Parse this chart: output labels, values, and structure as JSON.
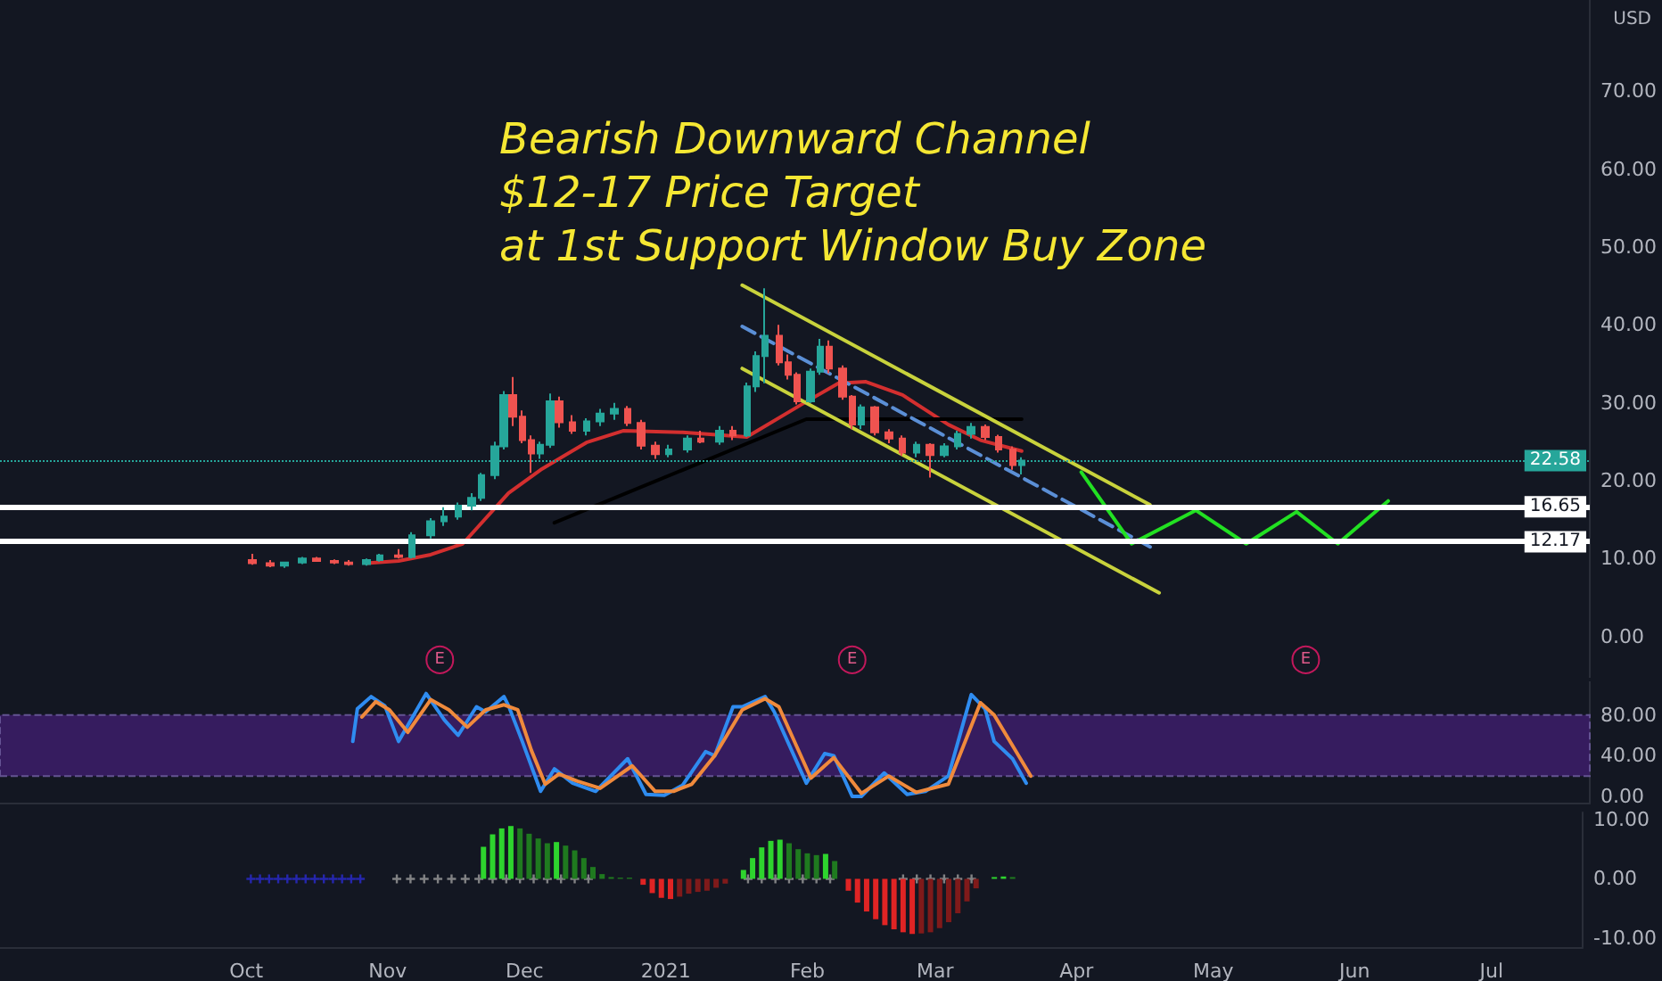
{
  "chart_data": [
    {
      "type": "candlestick",
      "title": "Bearish Downward Channel\n$12-17 Price Target\nat 1st Support Window Buy Zone",
      "xlim": [
        "2020-08-08",
        "2021-07-21"
      ],
      "ylim": [
        -5.3,
        81.7
      ],
      "yticks": [
        {
          "value": 0,
          "label": "0.00"
        },
        {
          "value": 10,
          "label": "10.00"
        },
        {
          "value": 20,
          "label": "20.00"
        },
        {
          "value": 30,
          "label": "30.00"
        },
        {
          "value": 40,
          "label": "40.00"
        },
        {
          "value": 50,
          "label": "50.00"
        },
        {
          "value": 60,
          "label": "60.00"
        },
        {
          "value": 70,
          "label": "70.00"
        }
      ],
      "tick_labels": "y",
      "grid": false,
      "annotations": [
        "USD",
        {
          "text": "E",
          "x": "2020-11-12",
          "y": -3
        },
        {
          "text": "E",
          "x": "2021-02-10",
          "y": -3
        },
        {
          "text": "E",
          "x": "2021-05-20",
          "y": -3
        }
      ],
      "ref_lines": [
        {
          "axis": "y",
          "value": 22.58,
          "label": "22.58",
          "color": "#26a69a",
          "line_style": "dotted"
        },
        {
          "axis": "y",
          "value": 16.65,
          "label": "16.65",
          "color": "#ffffff",
          "line_style": "solid"
        },
        {
          "axis": "y",
          "value": 12.17,
          "label": "12.17",
          "color": "#ffffff",
          "line_style": "solid"
        }
      ],
      "series": [
        {
          "x": [
            "2020-10-02",
            "2020-10-06",
            "2020-10-09",
            "2020-10-13",
            "2020-10-16",
            "2020-10-20",
            "2020-10-23",
            "2020-10-27",
            "2020-10-30",
            "2020-11-03",
            "2020-11-06",
            "2020-11-10",
            "2020-11-13",
            "2020-11-16",
            "2020-11-19",
            "2020-11-21",
            "2020-11-24",
            "2020-11-26",
            "2020-11-28",
            "2020-11-30",
            "2020-12-02",
            "2020-12-04",
            "2020-12-06",
            "2020-12-08",
            "2020-12-11",
            "2020-12-14",
            "2020-12-17",
            "2020-12-20",
            "2020-12-23",
            "2020-12-26",
            "2020-12-29",
            "2021-01-01",
            "2021-01-05",
            "2021-01-08",
            "2021-01-12",
            "2021-01-15",
            "2021-01-18",
            "2021-01-20",
            "2021-01-22",
            "2021-01-25",
            "2021-01-27",
            "2021-01-29",
            "2021-02-01",
            "2021-02-03",
            "2021-02-05",
            "2021-02-08",
            "2021-02-10",
            "2021-02-12",
            "2021-02-15",
            "2021-02-18",
            "2021-02-21",
            "2021-02-24",
            "2021-02-27",
            "2021-03-02",
            "2021-03-05",
            "2021-03-08",
            "2021-03-11",
            "2021-03-14",
            "2021-03-17",
            "2021-03-19"
          ],
          "ohlc": [
            [
              9.8,
              10.6,
              9.2,
              9.4
            ],
            [
              9.4,
              9.8,
              8.9,
              9.1
            ],
            [
              9.1,
              9.6,
              8.8,
              9.5
            ],
            [
              9.5,
              10.2,
              9.3,
              10.0
            ],
            [
              10.0,
              10.2,
              9.6,
              9.7
            ],
            [
              9.7,
              9.9,
              9.3,
              9.5
            ],
            [
              9.5,
              9.8,
              9.1,
              9.3
            ],
            [
              9.3,
              10.0,
              9.1,
              9.8
            ],
            [
              9.8,
              10.6,
              9.6,
              10.4
            ],
            [
              10.4,
              11.2,
              10.0,
              10.2
            ],
            [
              10.2,
              13.4,
              10.0,
              13.0
            ],
            [
              13.0,
              15.2,
              12.6,
              14.8
            ],
            [
              14.8,
              16.6,
              14.2,
              15.4
            ],
            [
              15.4,
              17.2,
              15.0,
              16.8
            ],
            [
              16.8,
              18.4,
              16.2,
              17.8
            ],
            [
              17.8,
              21.0,
              17.4,
              20.7
            ],
            [
              20.7,
              25.0,
              20.2,
              24.4
            ],
            [
              24.4,
              31.5,
              24.0,
              31.0
            ],
            [
              31.0,
              33.3,
              27.0,
              28.2
            ],
            [
              28.2,
              29.0,
              24.8,
              25.2
            ],
            [
              25.2,
              25.8,
              21.0,
              23.5
            ],
            [
              23.5,
              25.0,
              22.8,
              24.6
            ],
            [
              24.6,
              31.2,
              24.2,
              30.2
            ],
            [
              30.2,
              30.8,
              26.8,
              27.5
            ],
            [
              27.5,
              28.4,
              26.0,
              26.4
            ],
            [
              26.4,
              28.0,
              25.8,
              27.6
            ],
            [
              27.6,
              29.2,
              27.0,
              28.6
            ],
            [
              28.6,
              30.0,
              27.8,
              29.2
            ],
            [
              29.2,
              29.6,
              27.0,
              27.4
            ],
            [
              27.4,
              27.8,
              24.0,
              24.5
            ],
            [
              24.5,
              25.0,
              22.8,
              23.4
            ],
            [
              23.4,
              24.6,
              23.0,
              24.0
            ],
            [
              24.0,
              25.8,
              23.6,
              25.4
            ],
            [
              25.4,
              26.4,
              24.8,
              25.0
            ],
            [
              25.0,
              27.0,
              24.6,
              26.4
            ],
            [
              26.4,
              27.0,
              25.2,
              25.8
            ],
            [
              25.8,
              32.6,
              25.6,
              32.1
            ],
            [
              32.1,
              36.6,
              31.4,
              36.0
            ],
            [
              36.0,
              44.7,
              32.5,
              38.6
            ],
            [
              38.6,
              40.0,
              34.8,
              35.2
            ],
            [
              35.2,
              36.2,
              33.0,
              33.6
            ],
            [
              33.6,
              33.9,
              29.8,
              30.2
            ],
            [
              30.2,
              34.4,
              30.0,
              34.0
            ],
            [
              34.0,
              38.2,
              33.6,
              37.2
            ],
            [
              37.2,
              38.0,
              33.8,
              34.4
            ],
            [
              34.4,
              34.8,
              30.4,
              30.8
            ],
            [
              30.8,
              31.0,
              26.6,
              27.2
            ],
            [
              27.2,
              29.8,
              26.6,
              29.4
            ],
            [
              29.4,
              29.6,
              25.8,
              26.2
            ],
            [
              26.2,
              26.6,
              24.8,
              25.4
            ],
            [
              25.4,
              25.8,
              23.2,
              23.6
            ],
            [
              23.6,
              25.0,
              23.0,
              24.6
            ],
            [
              24.6,
              24.8,
              20.4,
              23.3
            ],
            [
              23.3,
              24.8,
              23.0,
              24.4
            ],
            [
              24.4,
              26.4,
              24.0,
              26.0
            ],
            [
              26.0,
              27.4,
              25.4,
              26.9
            ],
            [
              26.9,
              27.2,
              25.2,
              25.6
            ],
            [
              25.6,
              25.9,
              23.6,
              24.0
            ],
            [
              24.0,
              24.4,
              21.4,
              22.0
            ],
            [
              22.0,
              23.0,
              20.8,
              22.58
            ]
          ],
          "colors": [
            "#ef5350",
            "#ef5350",
            "#26a69a",
            "#26a69a",
            "#ef5350",
            "#ef5350",
            "#ef5350",
            "#26a69a",
            "#26a69a",
            "#ef5350",
            "#26a69a",
            "#26a69a",
            "#26a69a",
            "#26a69a",
            "#26a69a",
            "#26a69a",
            "#26a69a",
            "#26a69a",
            "#ef5350",
            "#ef5350",
            "#ef5350",
            "#26a69a",
            "#26a69a",
            "#ef5350",
            "#ef5350",
            "#26a69a",
            "#26a69a",
            "#26a69a",
            "#ef5350",
            "#ef5350",
            "#ef5350",
            "#26a69a",
            "#26a69a",
            "#ef5350",
            "#26a69a",
            "#ef5350",
            "#26a69a",
            "#26a69a",
            "#26a69a",
            "#ef5350",
            "#ef5350",
            "#ef5350",
            "#26a69a",
            "#26a69a",
            "#ef5350",
            "#ef5350",
            "#ef5350",
            "#26a69a",
            "#ef5350",
            "#ef5350",
            "#ef5350",
            "#26a69a",
            "#ef5350",
            "#26a69a",
            "#26a69a",
            "#26a69a",
            "#ef5350",
            "#ef5350",
            "#ef5350",
            "#26a69a"
          ]
        },
        {
          "type": "line",
          "color": "#d32f2f",
          "marker": "none",
          "line_style": "solid",
          "x": [
            "2020-10-27",
            "2020-11-03",
            "2020-11-10",
            "2020-11-17",
            "2020-11-27",
            "2020-12-04",
            "2020-12-14",
            "2020-12-22",
            "2021-01-04",
            "2021-01-18",
            "2021-01-30",
            "2021-02-07",
            "2021-02-13",
            "2021-02-21",
            "2021-03-03",
            "2021-03-10",
            "2021-03-19"
          ],
          "values": [
            9.4,
            9.7,
            10.5,
            11.9,
            18.4,
            21.4,
            24.9,
            26.4,
            26.2,
            25.6,
            29.8,
            32.5,
            32.7,
            31.0,
            27.2,
            25.2,
            23.8
          ]
        },
        {
          "type": "line",
          "color": "#000000",
          "marker": "none",
          "line_style": "solid",
          "x": [
            "2020-12-07",
            "2021-01-31",
            "2021-03-19"
          ],
          "values": [
            14.6,
            27.9,
            27.9
          ]
        },
        {
          "type": "line",
          "color": "#c8d23c",
          "marker": "none",
          "line_style": "solid",
          "x": [
            "2021-01-17",
            "2021-04-16"
          ],
          "values": [
            45.1,
            16.9
          ]
        },
        {
          "type": "line",
          "color": "#5b8fd6",
          "marker": "none",
          "line_style": "dashed",
          "x": [
            "2021-01-17",
            "2021-04-17"
          ],
          "values": [
            39.8,
            11.2
          ]
        },
        {
          "type": "line",
          "color": "#c8d23c",
          "marker": "none",
          "line_style": "solid",
          "x": [
            "2021-01-17",
            "2021-04-18"
          ],
          "values": [
            34.4,
            5.6
          ]
        },
        {
          "type": "line",
          "color": "#22e022",
          "marker": "none",
          "line_style": "solid",
          "x": [
            "2021-04-01",
            "2021-04-12",
            "2021-04-26",
            "2021-05-07",
            "2021-05-18",
            "2021-05-27",
            "2021-06-07"
          ],
          "values": [
            21.1,
            11.9,
            16.2,
            11.9,
            16.0,
            11.9,
            17.4
          ]
        }
      ]
    },
    {
      "type": "line",
      "xlim": [
        "2020-08-08",
        "2021-07-21"
      ],
      "ylim": [
        -7,
        113
      ],
      "yticks": [
        {
          "value": 0,
          "label": "0.00"
        },
        {
          "value": 40,
          "label": "40.00"
        },
        {
          "value": 80,
          "label": "80.00"
        }
      ],
      "tick_labels": "y",
      "grid": false,
      "marker": "none",
      "bands": [
        {
          "axis": "y",
          "from": 20,
          "to": 80,
          "color": "#3b1d66"
        }
      ],
      "series": [
        {
          "color": "#2f8cf0",
          "x": [
            "2020-10-24",
            "2020-10-25",
            "2020-10-28",
            "2020-10-31",
            "2020-11-03",
            "2020-11-09",
            "2020-11-13",
            "2020-11-16",
            "2020-11-20",
            "2020-11-22",
            "2020-11-26",
            "2020-11-27",
            "2020-11-30",
            "2020-12-04",
            "2020-12-07",
            "2020-12-11",
            "2020-12-16",
            "2020-12-23",
            "2020-12-27",
            "2020-12-31",
            "2021-01-04",
            "2021-01-09",
            "2021-01-11",
            "2021-01-15",
            "2021-01-17",
            "2021-01-22",
            "2021-01-24",
            "2021-01-31",
            "2021-02-04",
            "2021-02-06",
            "2021-02-10",
            "2021-02-12",
            "2021-02-17",
            "2021-02-22",
            "2021-02-26",
            "2021-03-03",
            "2021-03-08",
            "2021-03-11",
            "2021-03-13",
            "2021-03-17",
            "2021-03-20"
          ],
          "values": [
            54,
            86,
            98,
            89,
            54,
            101,
            75,
            60,
            88,
            83,
            98,
            89,
            54,
            5,
            27,
            13,
            5,
            37,
            2,
            1,
            11,
            44,
            40,
            88,
            88,
            98,
            83,
            13,
            42,
            40,
            0,
            0,
            23,
            2,
            5,
            20,
            100,
            86,
            54,
            37,
            13
          ]
        },
        {
          "color": "#f08a3c",
          "x": [
            "2020-10-26",
            "2020-10-29",
            "2020-11-01",
            "2020-11-05",
            "2020-11-10",
            "2020-11-14",
            "2020-11-18",
            "2020-11-22",
            "2020-11-26",
            "2020-11-29",
            "2020-12-02",
            "2020-12-05",
            "2020-12-08",
            "2020-12-12",
            "2020-12-17",
            "2020-12-24",
            "2020-12-29",
            "2021-01-02",
            "2021-01-06",
            "2021-01-11",
            "2021-01-17",
            "2021-01-22",
            "2021-01-25",
            "2021-02-01",
            "2021-02-06",
            "2021-02-12",
            "2021-02-18",
            "2021-02-24",
            "2021-03-03",
            "2021-03-10",
            "2021-03-13",
            "2021-03-17",
            "2021-03-21"
          ],
          "values": [
            78,
            93,
            85,
            63,
            95,
            85,
            68,
            85,
            90,
            85,
            45,
            12,
            22,
            15,
            8,
            30,
            5,
            5,
            12,
            40,
            85,
            96,
            88,
            18,
            38,
            3,
            20,
            4,
            12,
            92,
            80,
            50,
            20
          ]
        }
      ]
    },
    {
      "type": "bar",
      "xlim": [
        "2020-08-08",
        "2021-07-21"
      ],
      "xticks": [
        {
          "value": "2020-10-01",
          "label": "Oct"
        },
        {
          "value": "2020-11-01",
          "label": "Nov"
        },
        {
          "value": "2020-12-01",
          "label": "Dec"
        },
        {
          "value": "2021-01-01",
          "label": "2021"
        },
        {
          "value": "2021-02-01",
          "label": "Feb"
        },
        {
          "value": "2021-03-01",
          "label": "Mar"
        },
        {
          "value": "2021-04-01",
          "label": "Apr"
        },
        {
          "value": "2021-05-01",
          "label": "May"
        },
        {
          "value": "2021-06-01",
          "label": "Jun"
        },
        {
          "value": "2021-07-01",
          "label": "Jul"
        }
      ],
      "ylim": [
        -11.5,
        11.2
      ],
      "yticks": [
        {
          "value": -10,
          "label": "-10.00"
        },
        {
          "value": 0,
          "label": "0.00"
        },
        {
          "value": 10,
          "label": "10.00"
        }
      ],
      "grid": false,
      "series": [
        {
          "x": [
            "2020-11-22",
            "2020-11-24",
            "2020-11-26",
            "2020-11-28",
            "2020-11-30",
            "2020-12-02",
            "2020-12-04",
            "2020-12-06",
            "2020-12-08",
            "2020-12-10",
            "2020-12-12",
            "2020-12-14",
            "2020-12-16",
            "2020-12-18",
            "2020-12-20",
            "2020-12-22",
            "2020-12-24",
            "2020-12-27",
            "2020-12-29",
            "2020-12-31",
            "2021-01-02",
            "2021-01-04",
            "2021-01-06",
            "2021-01-08",
            "2021-01-10",
            "2021-01-12",
            "2021-01-14",
            "2021-01-18",
            "2021-01-20",
            "2021-01-22",
            "2021-01-24",
            "2021-01-26",
            "2021-01-28",
            "2021-01-30",
            "2021-02-01",
            "2021-02-03",
            "2021-02-05",
            "2021-02-07",
            "2021-02-10",
            "2021-02-12",
            "2021-02-14",
            "2021-02-16",
            "2021-02-18",
            "2021-02-20",
            "2021-02-22",
            "2021-02-24",
            "2021-02-26",
            "2021-02-28",
            "2021-03-02",
            "2021-03-04",
            "2021-03-06",
            "2021-03-08",
            "2021-03-10",
            "2021-03-14",
            "2021-03-16",
            "2021-03-18"
          ],
          "values": [
            5.4,
            7.5,
            8.5,
            8.9,
            8.5,
            7.6,
            6.8,
            6.0,
            6.2,
            5.6,
            4.8,
            3.5,
            2.0,
            0.8,
            0.3,
            0.2,
            0.2,
            -1.0,
            -2.4,
            -3.2,
            -3.4,
            -3.0,
            -2.5,
            -2.2,
            -2.0,
            -1.5,
            -0.8,
            1.5,
            3.5,
            5.3,
            6.4,
            6.6,
            6.0,
            5.0,
            4.3,
            4.0,
            4.2,
            3.0,
            -2.0,
            -4.0,
            -5.5,
            -6.8,
            -7.8,
            -8.5,
            -9.0,
            -9.3,
            -9.2,
            -9.0,
            -8.3,
            -7.3,
            -5.8,
            -3.8,
            -1.6,
            0.3,
            0.4,
            0.3
          ],
          "colors": [
            "#2ed42e",
            "#2ed42e",
            "#2ed42e",
            "#2ed42e",
            "#1f7a1f",
            "#1f7a1f",
            "#1f7a1f",
            "#1f7a1f",
            "#2ed42e",
            "#1f7a1f",
            "#1f7a1f",
            "#1f7a1f",
            "#1f7a1f",
            "#1f7a1f",
            "#1f7a1f",
            "#1f7a1f",
            "#1f7a1f",
            "#e02424",
            "#e02424",
            "#e02424",
            "#e02424",
            "#801a1a",
            "#801a1a",
            "#801a1a",
            "#801a1a",
            "#801a1a",
            "#801a1a",
            "#2ed42e",
            "#2ed42e",
            "#2ed42e",
            "#2ed42e",
            "#2ed42e",
            "#1f7a1f",
            "#1f7a1f",
            "#1f7a1f",
            "#1f7a1f",
            "#2ed42e",
            "#1f7a1f",
            "#e02424",
            "#e02424",
            "#e02424",
            "#e02424",
            "#e02424",
            "#e02424",
            "#e02424",
            "#e02424",
            "#801a1a",
            "#801a1a",
            "#801a1a",
            "#801a1a",
            "#801a1a",
            "#801a1a",
            "#801a1a",
            "#2ed42e",
            "#2ed42e",
            "#1f7a1f"
          ]
        },
        {
          "type": "scatter",
          "marker": "cross",
          "color": "#2a2ad0",
          "x": [
            "2020-10-02",
            "2020-10-04",
            "2020-10-06",
            "2020-10-08",
            "2020-10-10",
            "2020-10-12",
            "2020-10-14",
            "2020-10-16",
            "2020-10-18",
            "2020-10-20",
            "2020-10-22",
            "2020-10-24",
            "2020-10-26"
          ],
          "values": [
            0,
            0,
            0,
            0,
            0,
            0,
            0,
            0,
            0,
            0,
            0,
            0,
            0
          ]
        },
        {
          "type": "scatter",
          "marker": "cross",
          "color": "#9e9e9e",
          "x": [
            "2020-11-03",
            "2020-11-06",
            "2020-11-09",
            "2020-11-12",
            "2020-11-15",
            "2020-11-18",
            "2020-11-21",
            "2020-11-24",
            "2020-11-27",
            "2020-11-30",
            "2020-12-03",
            "2020-12-06",
            "2020-12-09",
            "2020-12-12",
            "2020-12-15",
            "2021-01-19",
            "2021-01-22",
            "2021-01-25",
            "2021-01-28",
            "2021-01-31",
            "2021-02-03",
            "2021-02-06",
            "2021-02-22",
            "2021-02-25",
            "2021-02-28",
            "2021-03-03",
            "2021-03-06",
            "2021-03-09"
          ],
          "values": [
            0,
            0,
            0,
            0,
            0,
            0,
            0,
            0,
            0,
            0,
            0,
            0,
            0,
            0,
            0,
            0,
            0,
            0,
            0,
            0,
            0,
            0,
            0,
            0,
            0,
            0,
            0,
            0
          ]
        }
      ]
    }
  ]
}
